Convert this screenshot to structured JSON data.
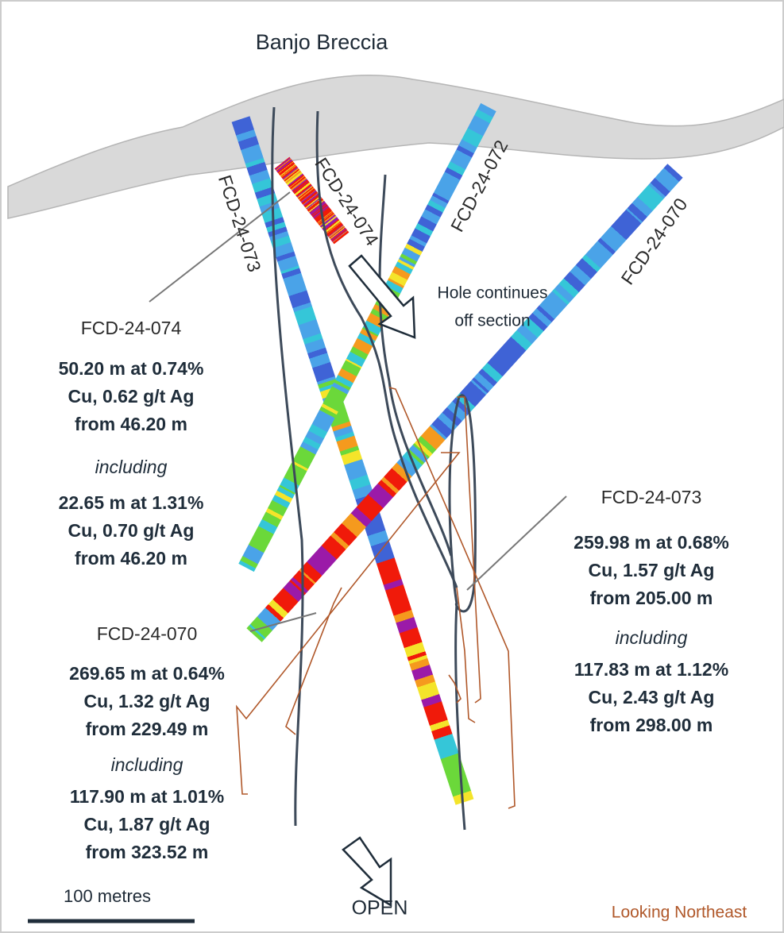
{
  "title": "Banjo Breccia",
  "holes": [
    "FCD-24-073",
    "FCD-24-074",
    "FCD-24-072",
    "FCD-24-070"
  ],
  "note": [
    "Hole continues",
    "off section"
  ],
  "intercepts": [
    {
      "hole": "FCD-24-074",
      "main": [
        "50.20 m at 0.74%",
        "Cu, 0.62 g/t Ag",
        "from 46.20 m"
      ],
      "including_label": "including",
      "including": [
        "22.65 m at 1.31%",
        "Cu, 0.70 g/t Ag",
        "from 46.20 m"
      ]
    },
    {
      "hole": "FCD-24-073",
      "main": [
        "259.98 m at 0.68%",
        "Cu, 1.57 g/t Ag",
        "from 205.00 m"
      ],
      "including_label": "including",
      "including": [
        "117.83 m at 1.12%",
        "Cu, 2.43 g/t Ag",
        "from 298.00 m"
      ]
    },
    {
      "hole": "FCD-24-070",
      "main": [
        "269.65 m at 0.64%",
        "Cu, 1.32 g/t Ag",
        "from 229.49 m"
      ],
      "including_label": "including",
      "including": [
        "117.90 m at 1.01%",
        "Cu, 1.87 g/t Ag",
        "from 323.52 m"
      ]
    }
  ],
  "scale_label": "100 metres",
  "open_label": "OPEN",
  "view_label": "Looking Northeast"
}
